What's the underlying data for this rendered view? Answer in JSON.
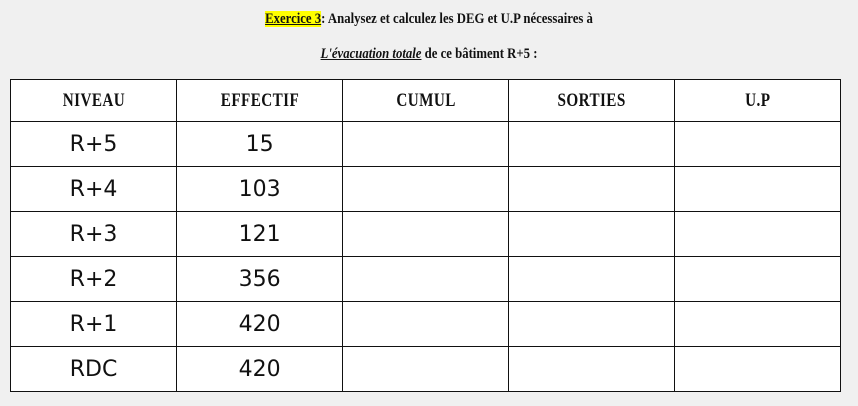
{
  "heading": {
    "exercise_label": "Exercice 3",
    "line1_rest": ": Analysez et calculez les DEG et U.P nécessaires à",
    "line2_emphasis": "L'évacuation totale",
    "line2_rest": " de ce bâtiment R+5 :",
    "highlight_color": "#ffff00"
  },
  "table": {
    "headers": [
      "NIVEAU",
      "EFFECTIF",
      "CUMUL",
      "SORTIES",
      "U.P"
    ],
    "rows": [
      {
        "niveau": "R+5",
        "effectif": "15"
      },
      {
        "niveau": "R+4",
        "effectif": "103"
      },
      {
        "niveau": "R+3",
        "effectif": "121"
      },
      {
        "niveau": "R+2",
        "effectif": "356"
      },
      {
        "niveau": "R+1",
        "effectif": "420"
      },
      {
        "niveau": "RDC",
        "effectif": "420"
      }
    ]
  }
}
